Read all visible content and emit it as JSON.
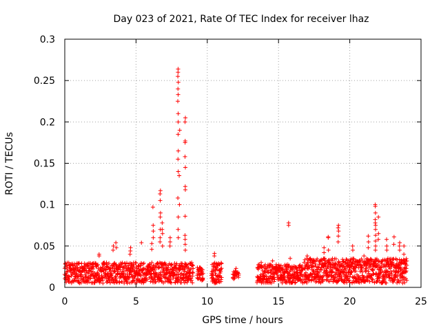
{
  "chart_data": {
    "type": "scatter",
    "title": "Day 023 of 2021, Rate Of TEC Index for receiver lhaz",
    "xlabel": "GPS time / hours",
    "ylabel": "ROTI / TECUs",
    "xlim": [
      0,
      25
    ],
    "ylim": [
      0,
      0.3
    ],
    "xticks": [
      0,
      5,
      10,
      15,
      20,
      25
    ],
    "yticks": [
      0,
      0.05,
      0.1,
      0.15,
      0.2,
      0.25,
      0.3
    ],
    "xtick_labels": [
      "0",
      "5",
      "10",
      "15",
      "20",
      "25"
    ],
    "ytick_labels": [
      "0",
      "0.05",
      "0.1",
      "0.15",
      "0.2",
      "0.25",
      "0.3"
    ],
    "grid": true,
    "marker": "+",
    "marker_color": "#ff0000",
    "clusters": [
      {
        "x_range": [
          0.0,
          9.0
        ],
        "base_range": [
          0.005,
          0.03
        ],
        "density": 260
      },
      {
        "x_range": [
          9.3,
          9.7
        ],
        "base_range": [
          0.008,
          0.025
        ],
        "density": 12
      },
      {
        "x_range": [
          10.3,
          11.0
        ],
        "base_range": [
          0.005,
          0.03
        ],
        "density": 22
      },
      {
        "x_range": [
          11.8,
          12.2
        ],
        "base_range": [
          0.01,
          0.02
        ],
        "density": 8
      },
      {
        "x_range": [
          13.5,
          16.7
        ],
        "base_range": [
          0.005,
          0.028
        ],
        "density": 90
      },
      {
        "x_range": [
          16.8,
          24.0
        ],
        "base_range": [
          0.005,
          0.035
        ],
        "density": 230
      }
    ],
    "peaks": [
      {
        "x": 2.4,
        "values": [
          0.04,
          0.038
        ]
      },
      {
        "x": 3.4,
        "values": [
          0.05,
          0.045
        ]
      },
      {
        "x": 3.6,
        "values": [
          0.054,
          0.048
        ]
      },
      {
        "x": 4.6,
        "values": [
          0.048,
          0.044,
          0.04
        ]
      },
      {
        "x": 5.4,
        "values": [
          0.054
        ]
      },
      {
        "x": 6.1,
        "values": [
          0.053,
          0.046
        ]
      },
      {
        "x": 6.2,
        "values": [
          0.097,
          0.075,
          0.068,
          0.06
        ]
      },
      {
        "x": 6.7,
        "values": [
          0.117,
          0.113,
          0.105,
          0.09,
          0.085,
          0.07,
          0.06,
          0.055
        ]
      },
      {
        "x": 6.85,
        "values": [
          0.078,
          0.07,
          0.065,
          0.05
        ]
      },
      {
        "x": 7.4,
        "values": [
          0.06,
          0.055,
          0.05
        ]
      },
      {
        "x": 7.95,
        "values": [
          0.264,
          0.26,
          0.255,
          0.248,
          0.24,
          0.233,
          0.225,
          0.21,
          0.2,
          0.185,
          0.165,
          0.155,
          0.14,
          0.108,
          0.085,
          0.07,
          0.06
        ]
      },
      {
        "x": 8.05,
        "values": [
          0.19,
          0.135,
          0.1
        ]
      },
      {
        "x": 8.45,
        "values": [
          0.205,
          0.2,
          0.177,
          0.175,
          0.158,
          0.145,
          0.122,
          0.118,
          0.086,
          0.063,
          0.058,
          0.052,
          0.045
        ]
      },
      {
        "x": 10.5,
        "values": [
          0.041,
          0.038
        ]
      },
      {
        "x": 12.0,
        "values": [
          0.023
        ]
      },
      {
        "x": 13.8,
        "values": [
          0.03
        ]
      },
      {
        "x": 14.6,
        "values": [
          0.032
        ]
      },
      {
        "x": 15.7,
        "values": [
          0.078,
          0.075
        ]
      },
      {
        "x": 15.8,
        "values": [
          0.035
        ]
      },
      {
        "x": 16.5,
        "values": [
          0.027
        ]
      },
      {
        "x": 17.0,
        "values": [
          0.038,
          0.035
        ]
      },
      {
        "x": 18.2,
        "values": [
          0.048,
          0.042
        ]
      },
      {
        "x": 18.5,
        "values": [
          0.061,
          0.06,
          0.045
        ]
      },
      {
        "x": 19.2,
        "values": [
          0.075,
          0.072,
          0.068,
          0.062,
          0.055
        ]
      },
      {
        "x": 20.2,
        "values": [
          0.05,
          0.045
        ]
      },
      {
        "x": 21.0,
        "values": [
          0.038
        ]
      },
      {
        "x": 21.3,
        "values": [
          0.062,
          0.055,
          0.048
        ]
      },
      {
        "x": 21.8,
        "values": [
          0.1,
          0.098,
          0.09,
          0.082,
          0.078,
          0.075,
          0.07,
          0.063,
          0.056,
          0.05,
          0.045
        ]
      },
      {
        "x": 22.0,
        "values": [
          0.085,
          0.065,
          0.058
        ]
      },
      {
        "x": 22.6,
        "values": [
          0.058,
          0.05,
          0.045
        ]
      },
      {
        "x": 23.1,
        "values": [
          0.061,
          0.052
        ]
      },
      {
        "x": 23.5,
        "values": [
          0.054,
          0.05,
          0.045
        ]
      },
      {
        "x": 23.8,
        "values": [
          0.05,
          0.04
        ]
      }
    ]
  }
}
